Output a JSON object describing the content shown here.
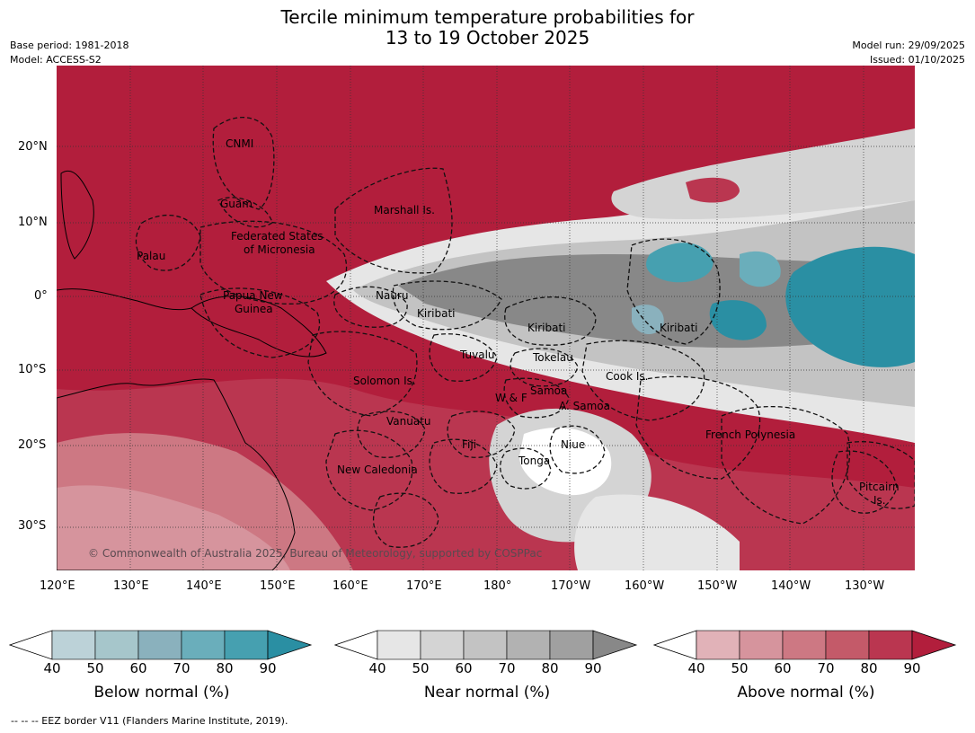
{
  "title": {
    "line1": "Tercile minimum temperature probabilities for",
    "line2": "13 to 19 October 2025"
  },
  "meta": {
    "base_period": "Base period: 1981-2018",
    "model": "Model: ACCESS-S2",
    "model_run": "Model run: 29/09/2025",
    "issued": "Issued: 01/10/2025"
  },
  "axes": {
    "lon_labels": [
      "120°E",
      "130°E",
      "140°E",
      "150°E",
      "160°E",
      "170°E",
      "180°",
      "170°W",
      "160°W",
      "150°W",
      "140°W",
      "130°W"
    ],
    "lat_labels": [
      "20°N",
      "10°N",
      "0°",
      "10°S",
      "20°S",
      "30°S"
    ]
  },
  "regions": {
    "cnmi": "CNMI",
    "guam": "Guam",
    "marshall": "Marshall Is.",
    "fsm_1": "Federated States",
    "fsm_2": "of Micronesia",
    "palau": "Palau",
    "png_1": "Papua New",
    "png_2": "Guinea",
    "nauru": "Nauru",
    "kiribati_w": "Kiribati",
    "kiribati_c": "Kiribati",
    "kiribati_e": "Kiribati",
    "tuvalu": "Tuvalu",
    "tokelau": "Tokelau",
    "cook": "Cook Is.",
    "solomon": "Solomon Is.",
    "wf": "W & F",
    "samoa": "Samoa",
    "asamoa": "A. Samoa",
    "vanuatu": "Vanuatu",
    "fiji": "Fiji",
    "niue": "Niue",
    "tonga": "Tonga",
    "newcal": "New Caledonia",
    "frpoly": "French Polynesia",
    "pitcairn_1": "Pitcairn",
    "pitcairn_2": "Is."
  },
  "copyright": "© Commonwealth of Australia 2025, Bureau of Meteorology, supported by COSPPac",
  "colorbars": [
    {
      "label": "Below normal (%)",
      "ticks": [
        "40",
        "50",
        "60",
        "70",
        "80",
        "90"
      ],
      "colors": [
        "#bcd2d8",
        "#a6c6cb",
        "#8ab1bd",
        "#6aaebb",
        "#46a0b0",
        "#2a8fa3"
      ]
    },
    {
      "label": "Near normal (%)",
      "ticks": [
        "40",
        "50",
        "60",
        "70",
        "80",
        "90"
      ],
      "colors": [
        "#e6e6e6",
        "#d4d4d4",
        "#c3c3c3",
        "#b2b2b2",
        "#a0a0a0",
        "#888888"
      ]
    },
    {
      "label": "Above normal (%)",
      "ticks": [
        "40",
        "50",
        "60",
        "70",
        "80",
        "90"
      ],
      "colors": [
        "#e1b2b8",
        "#d6949d",
        "#cd7883",
        "#c45a69",
        "#ba3650",
        "#b21e3c"
      ]
    }
  ],
  "footnote": "--  --  -- EEZ border V11 (Flanders Marine Institute, 2019)."
}
